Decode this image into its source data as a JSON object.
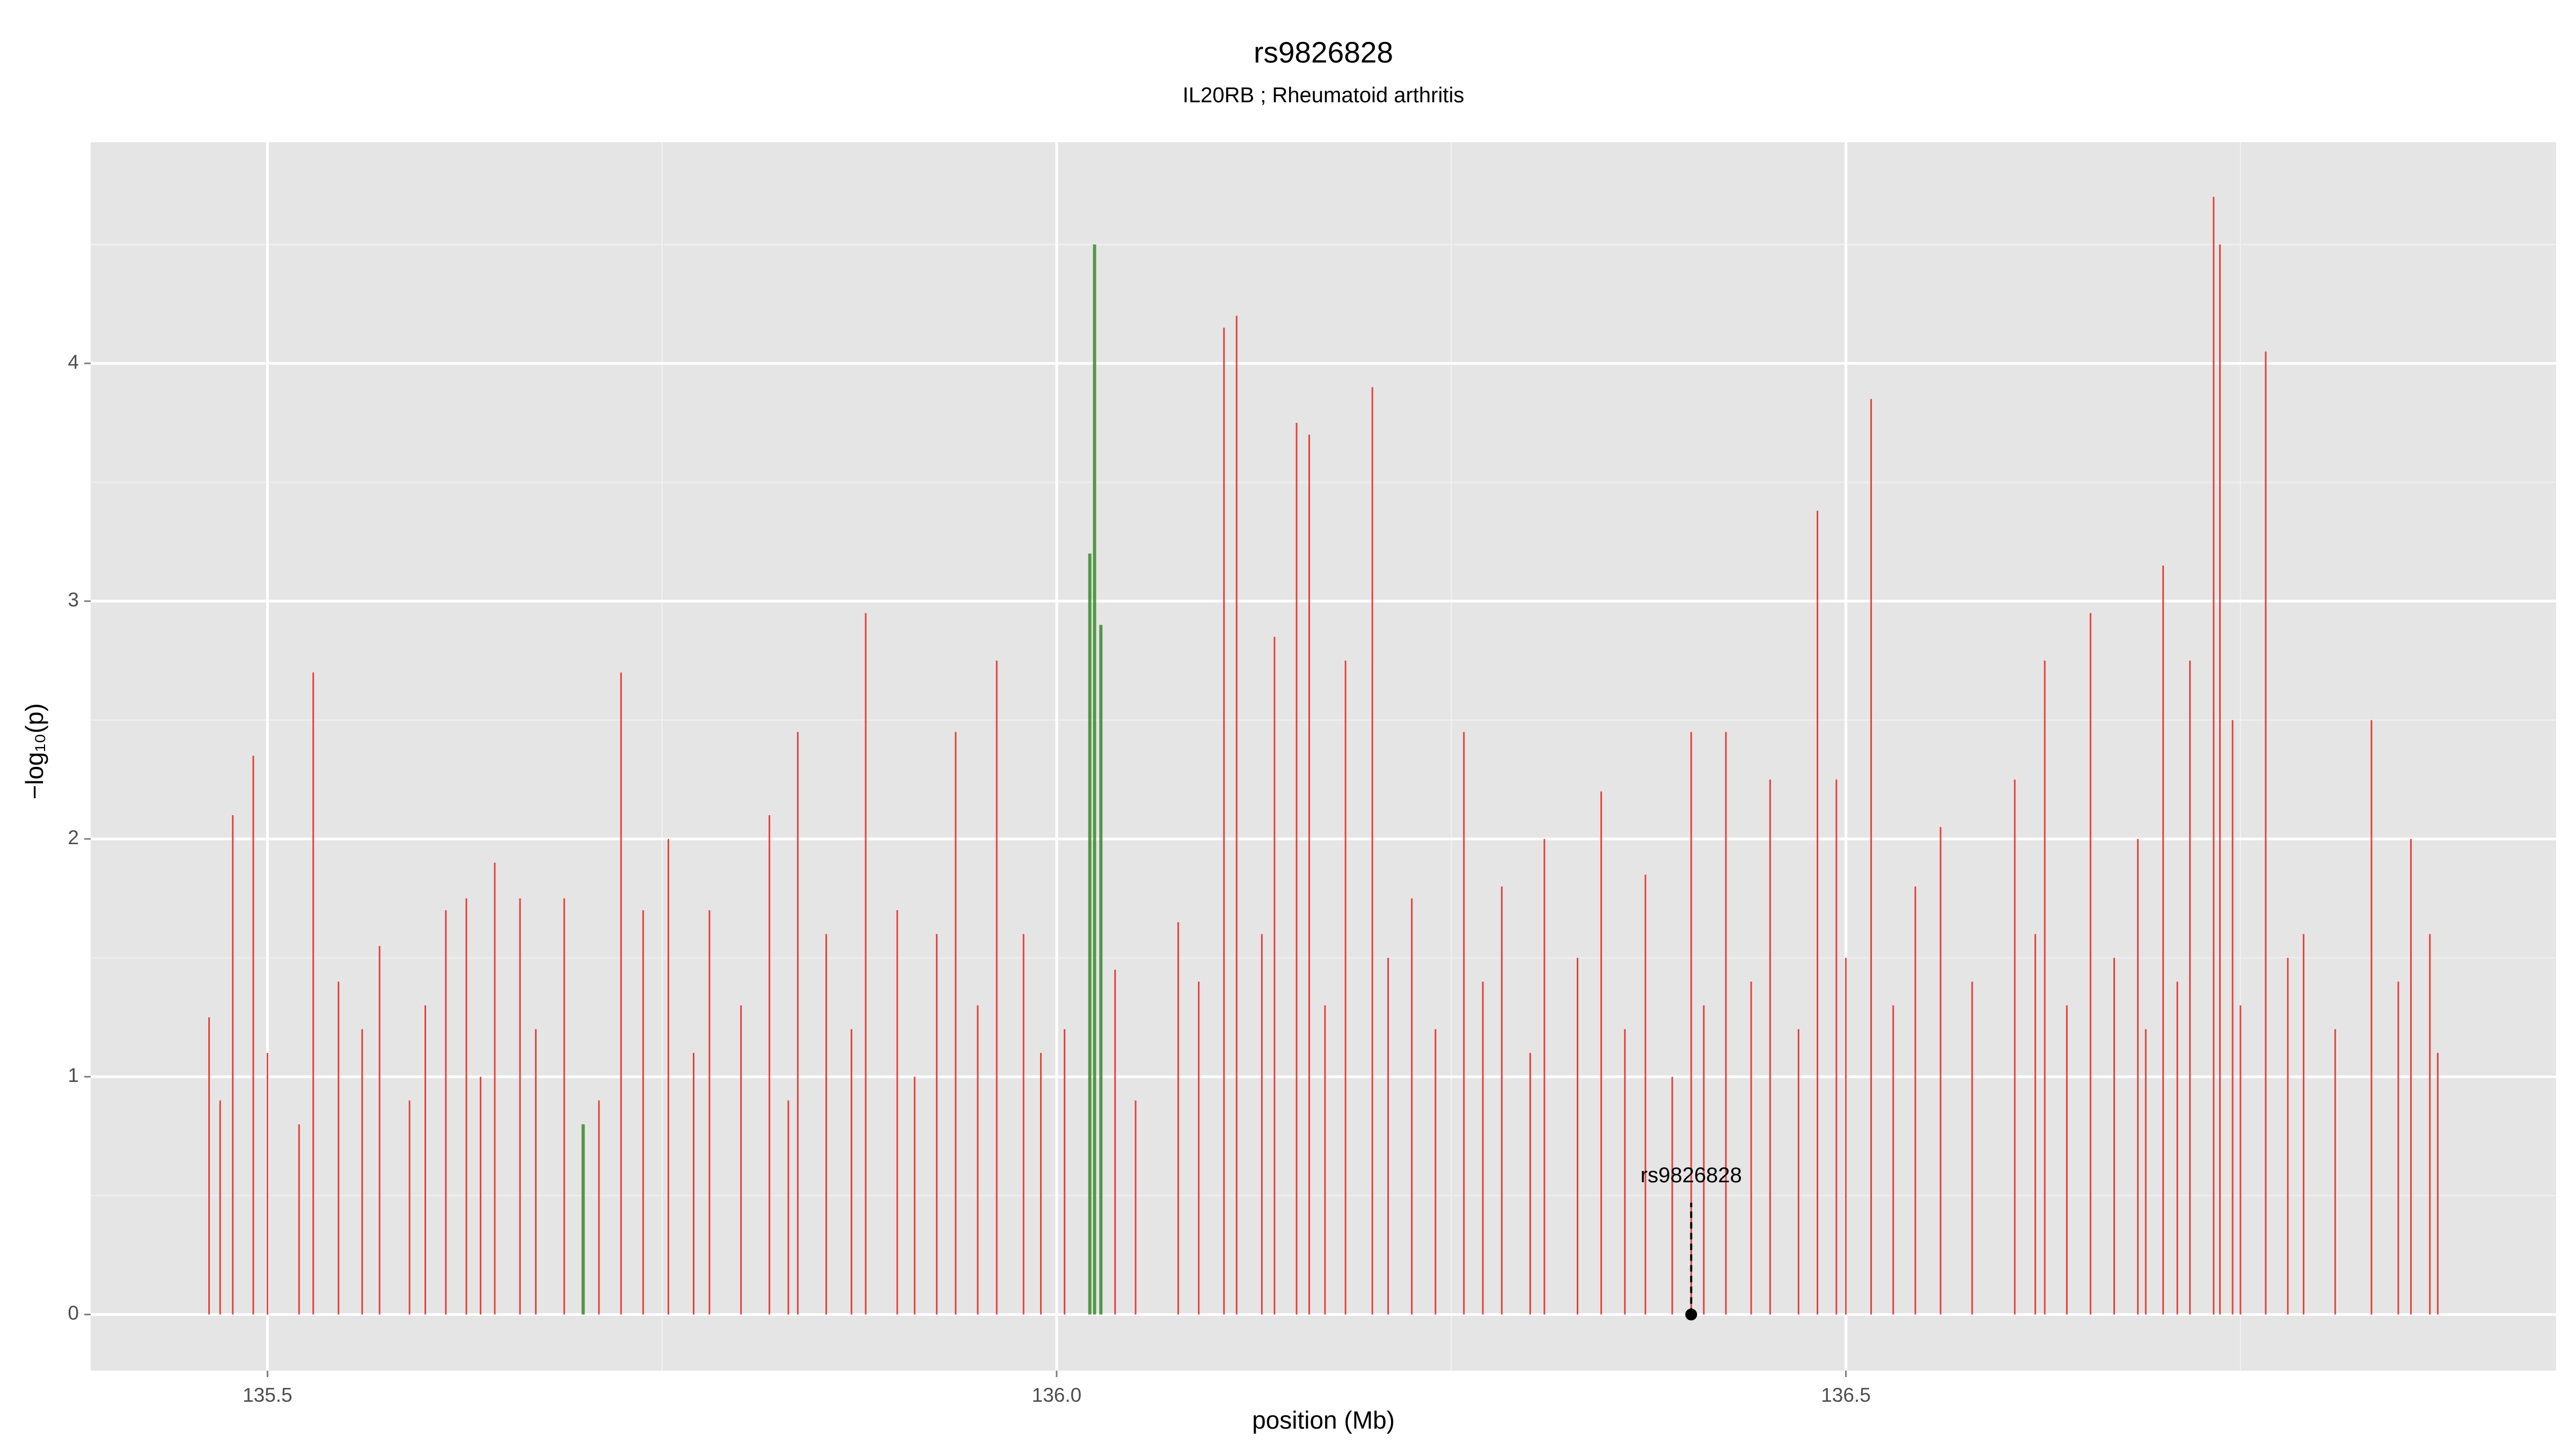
{
  "chart_data": {
    "type": "spike",
    "title": "rs9826828",
    "subtitle": "IL20RB ; Rheumatoid arthritis",
    "x_label": "position (Mb)",
    "y_label": "−log₁₀(p)",
    "xlim": [
      135.388,
      136.95
    ],
    "ylim": [
      -0.236,
      4.93
    ],
    "xticks": [
      135.5,
      {
        "value": 136.0,
        "label": "136.0"
      },
      136.5
    ],
    "yticks": [
      0,
      1,
      2,
      3,
      4
    ],
    "xminorticks": [
      135.75,
      136.25,
      136.75
    ],
    "yminorticks": [
      0.5,
      1.5,
      2.5,
      3.5,
      4.5
    ],
    "grid": true,
    "series": [
      {
        "color": "#e8231c",
        "x": [
          135.463,
          135.478,
          135.491,
          135.529,
          135.545,
          135.571,
          135.613,
          135.626,
          135.644,
          135.66,
          135.688,
          135.724,
          135.738,
          135.754,
          135.78,
          135.818,
          135.836,
          135.854,
          135.879,
          135.899,
          135.924,
          135.936,
          135.962,
          135.979,
          136.037,
          136.077,
          136.106,
          136.114,
          136.138,
          136.152,
          136.16,
          136.183,
          136.2,
          136.225,
          136.258,
          136.282,
          136.309,
          136.345,
          136.373,
          136.402,
          136.424,
          136.452,
          136.482,
          136.494,
          136.516,
          136.544,
          136.56,
          136.607,
          136.626,
          136.655,
          136.685,
          136.701,
          136.718,
          136.733,
          136.737,
          136.745,
          136.766,
          136.79,
          136.833,
          136.858,
          136.87,
          135.47,
          135.5,
          135.52,
          135.56,
          135.59,
          135.6,
          135.635,
          135.67,
          135.71,
          135.77,
          135.8,
          135.83,
          135.87,
          135.91,
          135.95,
          135.99,
          136.005,
          136.05,
          136.09,
          136.13,
          136.17,
          136.21,
          136.24,
          136.27,
          136.3,
          136.33,
          136.36,
          136.39,
          136.41,
          136.44,
          136.47,
          136.5,
          136.53,
          136.58,
          136.62,
          136.64,
          136.67,
          136.69,
          136.71,
          136.75,
          136.78,
          136.81,
          136.85,
          136.875
        ],
        "values": [
          1.25,
          2.1,
          2.35,
          2.7,
          1.4,
          1.55,
          1.7,
          1.75,
          1.9,
          1.75,
          1.75,
          2.7,
          1.7,
          2.0,
          1.7,
          2.1,
          2.45,
          1.6,
          2.95,
          1.7,
          1.6,
          2.45,
          2.75,
          1.6,
          1.45,
          1.65,
          4.15,
          4.2,
          2.85,
          3.75,
          3.7,
          2.75,
          3.9,
          1.75,
          2.45,
          1.8,
          2.0,
          2.2,
          1.85,
          2.45,
          2.45,
          2.25,
          3.38,
          2.25,
          3.85,
          1.8,
          2.05,
          2.25,
          2.75,
          2.95,
          2.0,
          3.15,
          2.75,
          4.7,
          4.5,
          2.5,
          4.05,
          1.6,
          2.5,
          2.0,
          1.6,
          0.9,
          1.1,
          0.8,
          1.2,
          0.9,
          1.3,
          1.0,
          1.2,
          0.9,
          1.1,
          1.3,
          0.9,
          1.2,
          1.0,
          1.3,
          1.1,
          1.2,
          0.9,
          1.4,
          1.6,
          1.3,
          1.5,
          1.2,
          1.4,
          1.1,
          1.5,
          1.2,
          1.0,
          1.3,
          1.4,
          1.2,
          1.5,
          1.3,
          1.4,
          1.6,
          1.3,
          1.5,
          1.2,
          1.4,
          1.3,
          1.5,
          1.2,
          1.4,
          1.1
        ]
      },
      {
        "color": "#3a8a2a",
        "x": [
          135.7,
          136.021,
          136.024,
          136.028
        ],
        "values": [
          0.8,
          3.2,
          4.5,
          2.9
        ]
      }
    ],
    "annotation": {
      "text": "rs9826828",
      "x": 136.402,
      "y": 0
    }
  }
}
